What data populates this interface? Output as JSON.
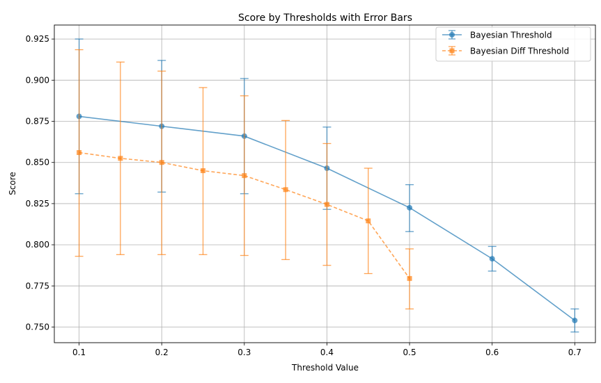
{
  "chart_data": {
    "type": "line",
    "title": "Score by Thresholds with Error Bars",
    "xlabel": "Threshold Value",
    "ylabel": "Score",
    "xlim": [
      0.07,
      0.725
    ],
    "ylim": [
      0.7405,
      0.9335
    ],
    "xticks": [
      0.1,
      0.2,
      0.3,
      0.4,
      0.5,
      0.6,
      0.7
    ],
    "xtick_labels": [
      "0.1",
      "0.2",
      "0.3",
      "0.4",
      "0.5",
      "0.6",
      "0.7"
    ],
    "yticks": [
      0.75,
      0.775,
      0.8,
      0.825,
      0.85,
      0.875,
      0.9,
      0.925
    ],
    "ytick_labels": [
      "0.750",
      "0.775",
      "0.800",
      "0.825",
      "0.850",
      "0.875",
      "0.900",
      "0.925"
    ],
    "grid": true,
    "legend_position": "top-right",
    "series": [
      {
        "name": "Bayesian Threshold",
        "color": "#1f77b4",
        "marker": "circle",
        "linestyle": "solid",
        "x": [
          0.1,
          0.2,
          0.3,
          0.4,
          0.5,
          0.6,
          0.7
        ],
        "y": [
          0.878,
          0.872,
          0.866,
          0.8465,
          0.8225,
          0.7915,
          0.754
        ],
        "err_low": [
          0.831,
          0.832,
          0.831,
          0.8215,
          0.808,
          0.784,
          0.747
        ],
        "err_high": [
          0.925,
          0.912,
          0.901,
          0.8715,
          0.8365,
          0.799,
          0.761
        ]
      },
      {
        "name": "Bayesian Diff Threshold",
        "color": "#ff7f0e",
        "marker": "square",
        "linestyle": "dashed",
        "x": [
          0.1,
          0.15,
          0.2,
          0.25,
          0.3,
          0.35,
          0.4,
          0.45,
          0.5
        ],
        "y": [
          0.856,
          0.8525,
          0.85,
          0.845,
          0.842,
          0.8335,
          0.8245,
          0.8145,
          0.7795
        ],
        "err_low": [
          0.793,
          0.794,
          0.794,
          0.794,
          0.7935,
          0.791,
          0.7875,
          0.7825,
          0.761
        ],
        "err_high": [
          0.9185,
          0.911,
          0.9055,
          0.8955,
          0.8905,
          0.8755,
          0.8615,
          0.8465,
          0.7975
        ]
      }
    ]
  }
}
